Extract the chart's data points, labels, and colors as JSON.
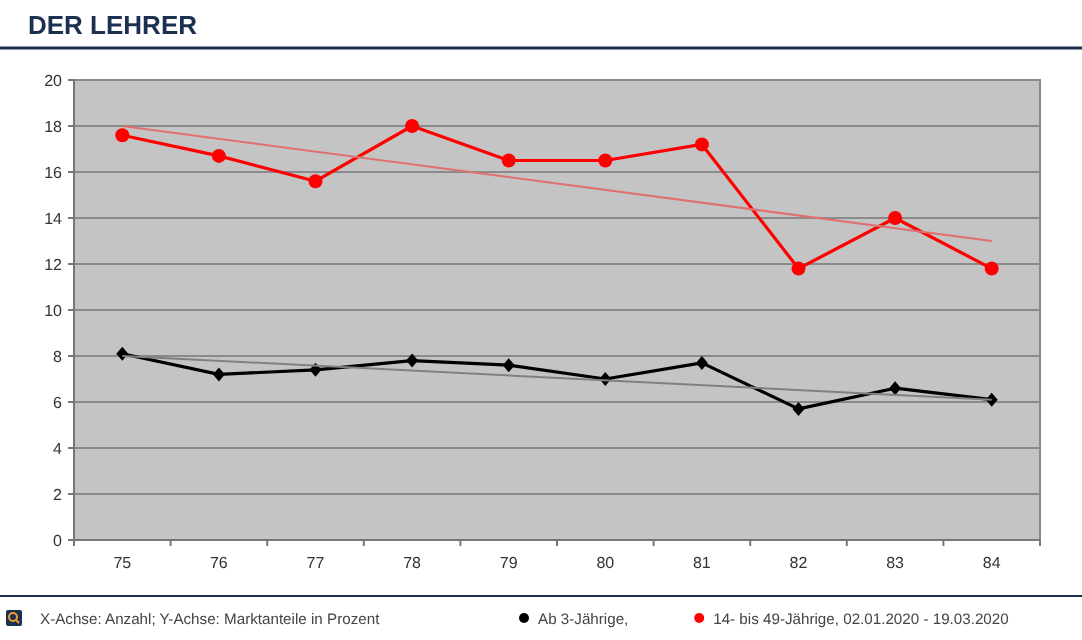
{
  "chart_data": {
    "type": "line",
    "title": "DER LEHRER",
    "categories": [
      "75",
      "76",
      "77",
      "78",
      "79",
      "80",
      "81",
      "82",
      "83",
      "84"
    ],
    "series": [
      {
        "name": "Ab 3-Jährige,",
        "color": "#000000",
        "marker": "diamond",
        "values": [
          8.1,
          7.2,
          7.4,
          7.8,
          7.6,
          7.0,
          7.7,
          5.7,
          6.6,
          6.1
        ]
      },
      {
        "name": "14- bis 49-Jährige, 02.01.2020 - 19.03.2020",
        "color": "#ff0000",
        "marker": "circle",
        "values": [
          17.6,
          16.7,
          15.6,
          18.0,
          16.5,
          16.5,
          17.2,
          11.8,
          14.0,
          11.8
        ]
      },
      {
        "color": "#808080",
        "marker": "none",
        "x": [
          "75",
          "84"
        ],
        "values": [
          8.0,
          6.1
        ]
      },
      {
        "color": "#e07070",
        "marker": "none",
        "x": [
          "75",
          "84"
        ],
        "values": [
          18.0,
          13.0
        ]
      }
    ],
    "ylim": [
      0,
      20
    ],
    "yticks": [
      0,
      2,
      4,
      6,
      8,
      10,
      12,
      14,
      16,
      18,
      20
    ],
    "grid": "y",
    "legend": "bottom",
    "annotations": [
      "X-Achse: Anzahl; Y-Achse: Marktanteile in Prozent"
    ]
  }
}
